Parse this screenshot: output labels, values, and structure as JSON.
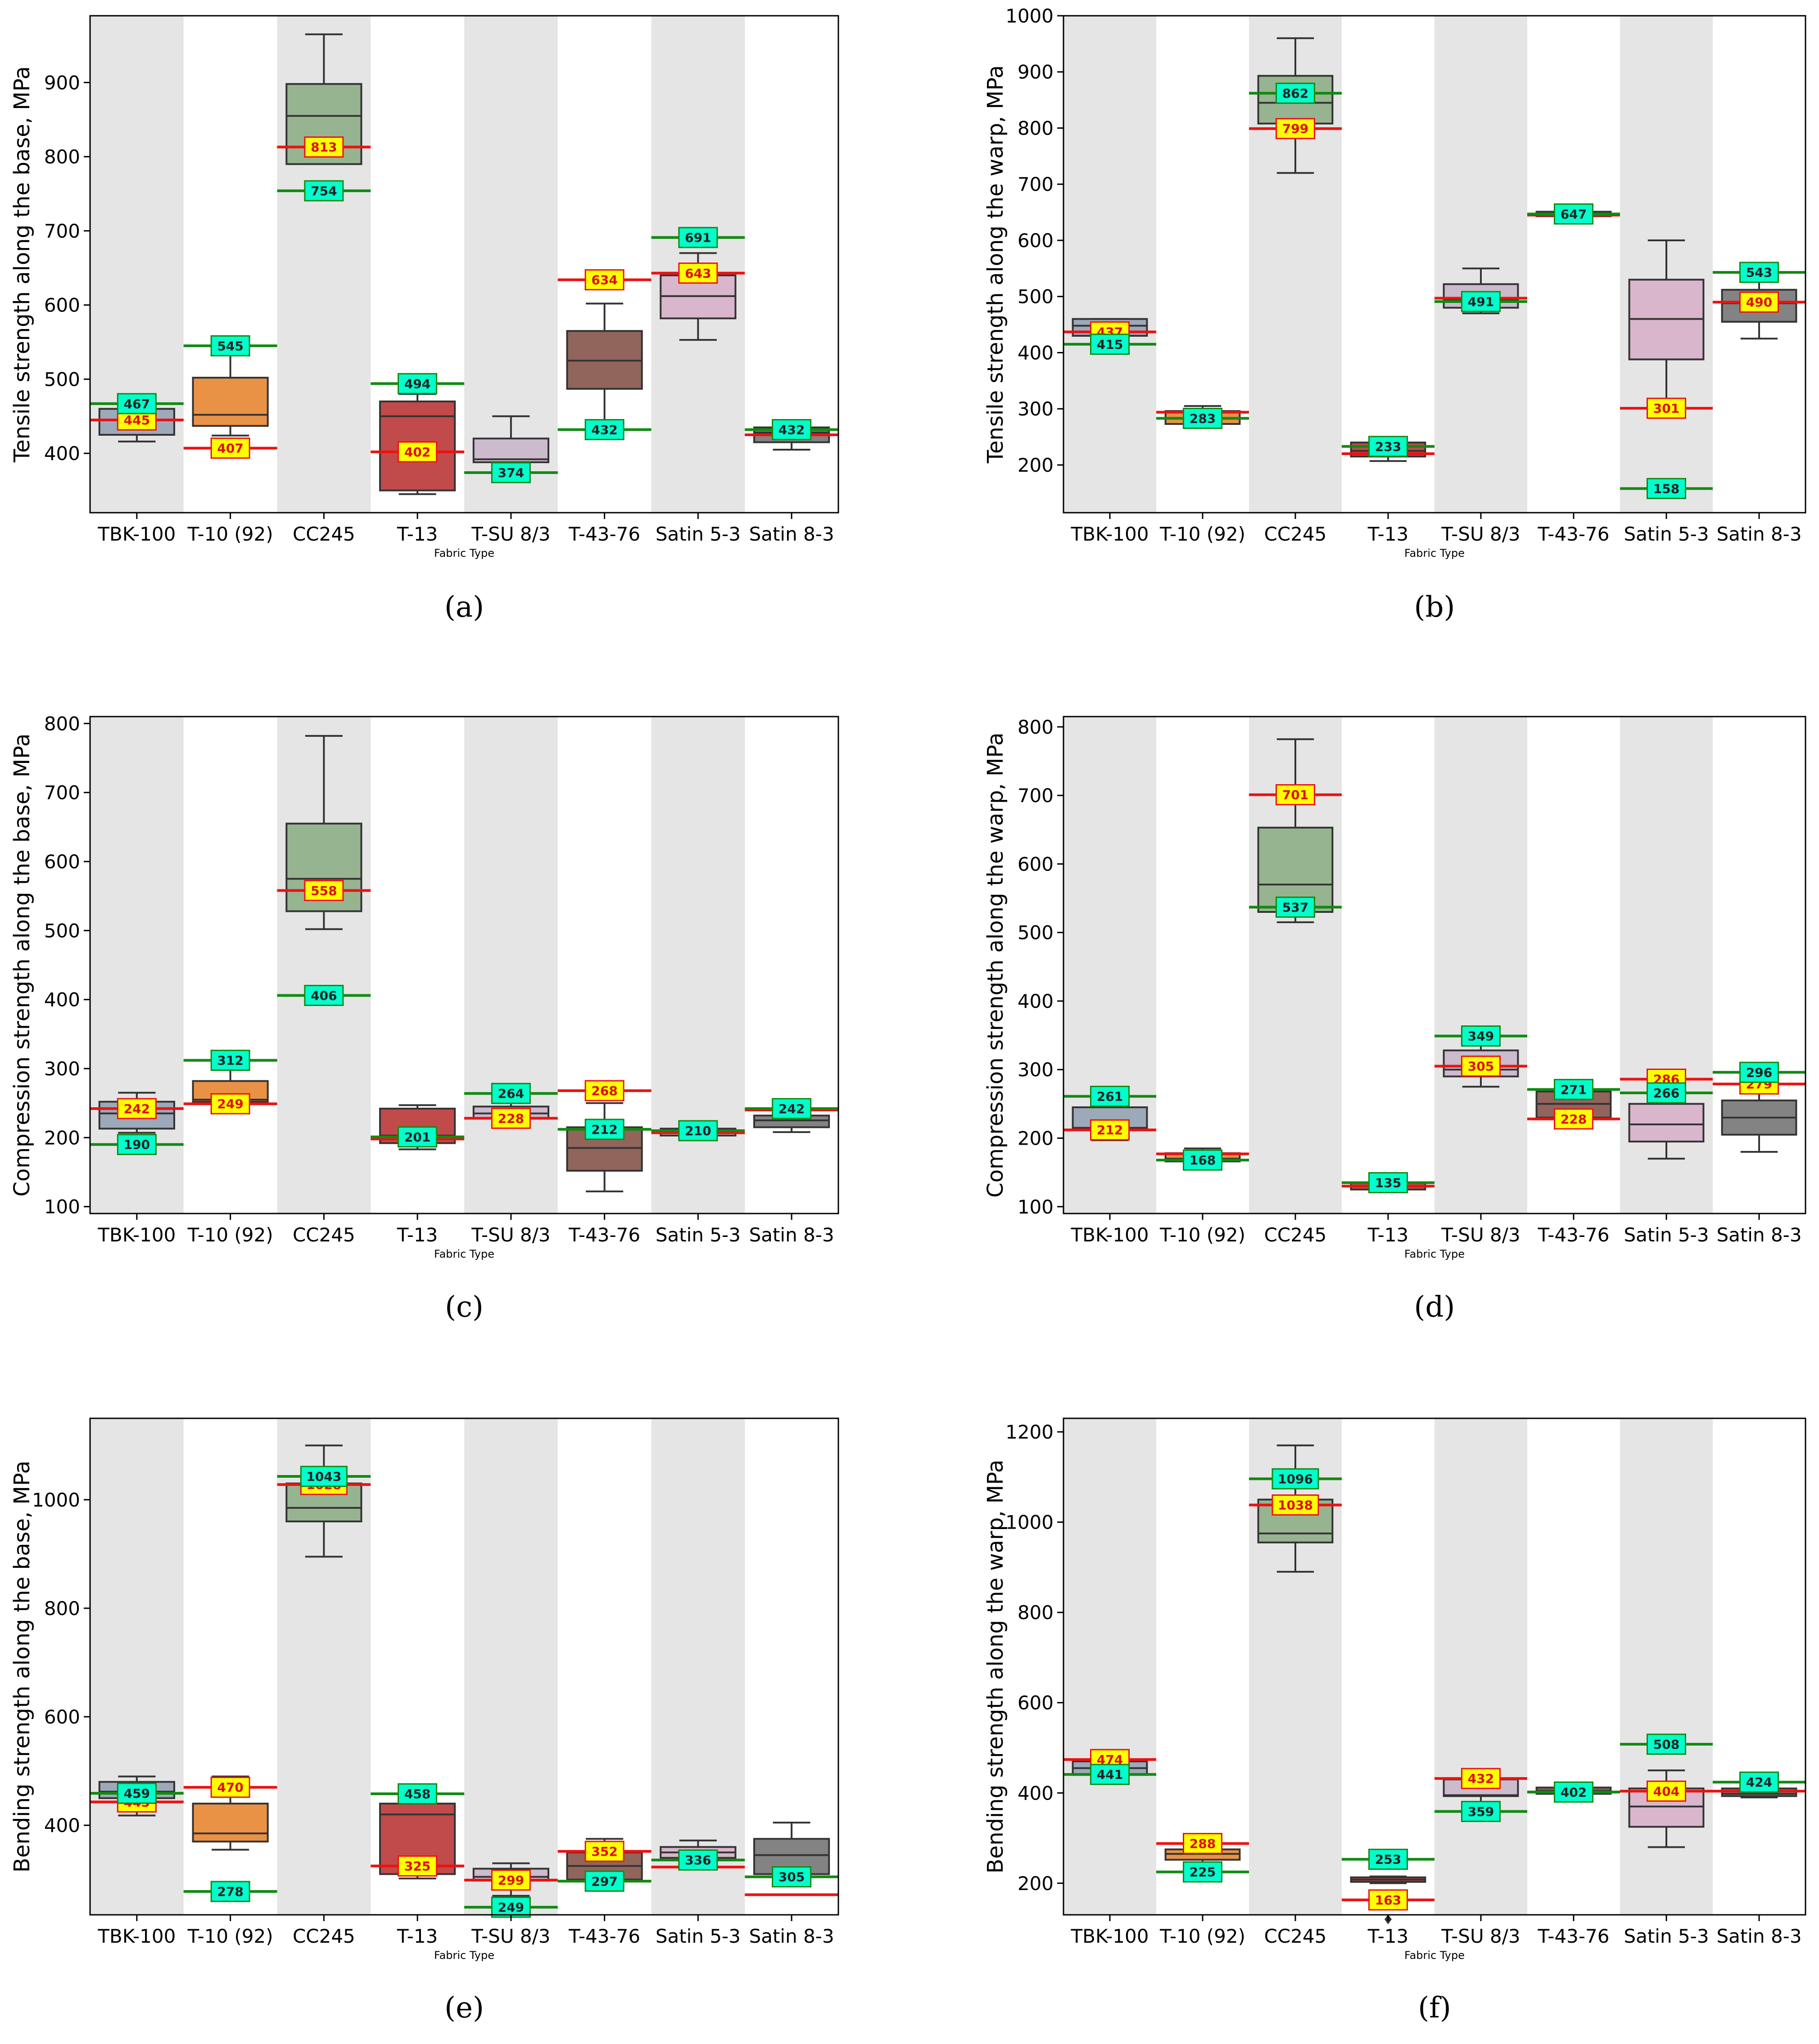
{
  "figure": {
    "categories": [
      "TBK-100",
      "T-10 (92)",
      "CC245",
      "T-13",
      "T-SU 8/3",
      "T-43-76",
      "Satin 5-3",
      "Satin 8-3"
    ],
    "xlabel": "Fabric Type",
    "colors": {
      "TBK-100": "#8f9fb2",
      "T-10 (92)": "#e57f26",
      "CC245": "#8aac83",
      "T-13": "#b62c2c",
      "T-SU 8/3": "#c8b3c9",
      "T-43-76": "#7e4a40",
      "Satin 5-3": "#d7aec8",
      "Satin 8-3": "#6d6d6d",
      "band": "#e5e5e5",
      "red_line": "#ee1111",
      "green_line": "#118a11",
      "red_label_bg": "#ffff00",
      "green_label_bg": "#00ffcc"
    }
  },
  "chart_data": [
    {
      "id": "a",
      "caption": "(a)",
      "type": "box",
      "ylabel": "Tensile strength along the base, MPa",
      "ylim": [
        320,
        990
      ],
      "yticks": [
        400,
        500,
        600,
        700,
        800,
        900
      ],
      "boxes": [
        {
          "q1": 425,
          "med": 445,
          "q3": 460,
          "lo": 416,
          "hi": 460
        },
        {
          "q1": 437,
          "med": 452,
          "q3": 502,
          "lo": 424,
          "hi": 545
        },
        {
          "q1": 790,
          "med": 855,
          "q3": 898,
          "lo": 790,
          "hi": 965
        },
        {
          "q1": 350,
          "med": 450,
          "q3": 470,
          "lo": 345,
          "hi": 480
        },
        {
          "q1": 388,
          "med": 392,
          "q3": 420,
          "lo": 370,
          "hi": 450
        },
        {
          "q1": 487,
          "med": 525,
          "q3": 565,
          "lo": 445,
          "hi": 602
        },
        {
          "q1": 582,
          "med": 612,
          "q3": 640,
          "lo": 553,
          "hi": 670
        },
        {
          "q1": 415,
          "med": 428,
          "q3": 435,
          "lo": 405,
          "hi": 445
        }
      ],
      "red": [
        445,
        407,
        813,
        402,
        374,
        634,
        643,
        425
      ],
      "green": [
        467,
        545,
        754,
        494,
        374,
        432,
        691,
        432
      ],
      "red_labels": [
        "445",
        "407",
        "813",
        "402",
        "",
        "634",
        "643",
        ""
      ],
      "green_labels": [
        "467",
        "545",
        "754",
        "494",
        "374",
        "432",
        "691",
        "432"
      ]
    },
    {
      "id": "b",
      "caption": "(b)",
      "type": "box",
      "ylabel": "Tensile strength along the warp, MPa",
      "ylim": [
        115,
        1000
      ],
      "yticks": [
        200,
        300,
        400,
        500,
        600,
        700,
        800,
        900,
        1000
      ],
      "boxes": [
        {
          "q1": 430,
          "med": 448,
          "q3": 460,
          "lo": 425,
          "hi": 460
        },
        {
          "q1": 273,
          "med": 283,
          "q3": 296,
          "lo": 268,
          "hi": 305
        },
        {
          "q1": 808,
          "med": 845,
          "q3": 893,
          "lo": 720,
          "hi": 960
        },
        {
          "q1": 215,
          "med": 225,
          "q3": 240,
          "lo": 207,
          "hi": 250
        },
        {
          "q1": 480,
          "med": 495,
          "q3": 522,
          "lo": 470,
          "hi": 550
        },
        {
          "q1": 643,
          "med": 647,
          "q3": 651,
          "lo": 640,
          "hi": 655
        },
        {
          "q1": 388,
          "med": 460,
          "q3": 530,
          "lo": 300,
          "hi": 600
        },
        {
          "q1": 455,
          "med": 488,
          "q3": 512,
          "lo": 425,
          "hi": 543
        }
      ],
      "red": [
        437,
        294,
        799,
        220,
        497,
        645,
        301,
        490
      ],
      "green": [
        415,
        283,
        862,
        233,
        491,
        647,
        158,
        543
      ],
      "red_labels": [
        "437",
        "",
        "799",
        "",
        "",
        "",
        "301",
        "490"
      ],
      "green_labels": [
        "415",
        "283",
        "862",
        "233",
        "491",
        "647",
        "158",
        "543"
      ]
    },
    {
      "id": "c",
      "caption": "(c)",
      "type": "box",
      "ylabel": "Compression strength along the base, MPa",
      "ylim": [
        90,
        810
      ],
      "yticks": [
        100,
        200,
        300,
        400,
        500,
        600,
        700,
        800
      ],
      "boxes": [
        {
          "q1": 213,
          "med": 235,
          "q3": 252,
          "lo": 207,
          "hi": 265
        },
        {
          "q1": 252,
          "med": 255,
          "q3": 282,
          "lo": 250,
          "hi": 310
        },
        {
          "q1": 528,
          "med": 575,
          "q3": 655,
          "lo": 502,
          "hi": 782
        },
        {
          "q1": 192,
          "med": 203,
          "q3": 242,
          "lo": 183,
          "hi": 247
        },
        {
          "q1": 228,
          "med": 235,
          "q3": 245,
          "lo": 222,
          "hi": 250
        },
        {
          "q1": 152,
          "med": 185,
          "q3": 215,
          "lo": 122,
          "hi": 250
        },
        {
          "q1": 203,
          "med": 207,
          "q3": 213,
          "lo": 198,
          "hi": 218
        },
        {
          "q1": 215,
          "med": 225,
          "q3": 232,
          "lo": 208,
          "hi": 240
        }
      ],
      "red": [
        242,
        249,
        558,
        198,
        228,
        268,
        207,
        240
      ],
      "green": [
        190,
        312,
        406,
        201,
        264,
        212,
        210,
        242
      ],
      "red_labels": [
        "242",
        "249",
        "558",
        "",
        "228",
        "268",
        "",
        ""
      ],
      "green_labels": [
        "190",
        "312",
        "406",
        "201",
        "264",
        "212",
        "210",
        "242"
      ]
    },
    {
      "id": "d",
      "caption": "(d)",
      "type": "box",
      "ylabel": "Compression strength along the warp, MPa",
      "ylim": [
        90,
        815
      ],
      "yticks": [
        100,
        200,
        300,
        400,
        500,
        600,
        700,
        800
      ],
      "boxes": [
        {
          "q1": 213,
          "med": 215,
          "q3": 245,
          "lo": 197,
          "hi": 248
        },
        {
          "q1": 166,
          "med": 170,
          "q3": 178,
          "lo": 158,
          "hi": 185
        },
        {
          "q1": 530,
          "med": 570,
          "q3": 653,
          "lo": 515,
          "hi": 782
        },
        {
          "q1": 125,
          "med": 130,
          "q3": 135,
          "lo": 122,
          "hi": 138
        },
        {
          "q1": 290,
          "med": 300,
          "q3": 328,
          "lo": 275,
          "hi": 345
        },
        {
          "q1": 230,
          "med": 250,
          "q3": 268,
          "lo": 215,
          "hi": 275
        },
        {
          "q1": 195,
          "med": 220,
          "q3": 250,
          "lo": 170,
          "hi": 280
        },
        {
          "q1": 205,
          "med": 230,
          "q3": 255,
          "lo": 180,
          "hi": 275
        }
      ],
      "red": [
        212,
        177,
        701,
        130,
        305,
        228,
        286,
        279
      ],
      "green": [
        261,
        168,
        537,
        135,
        349,
        271,
        266,
        296
      ],
      "red_labels": [
        "212",
        "",
        "701",
        "",
        "305",
        "228",
        "286",
        "279"
      ],
      "green_labels": [
        "261",
        "168",
        "537",
        "135",
        "349",
        "271",
        "266",
        "296"
      ]
    },
    {
      "id": "e",
      "caption": "(e)",
      "type": "box",
      "ylabel": "Bending strength along the base, MPa",
      "ylim": [
        235,
        1150
      ],
      "yticks": [
        400,
        600,
        800,
        1000
      ],
      "boxes": [
        {
          "q1": 450,
          "med": 462,
          "q3": 480,
          "lo": 418,
          "hi": 490
        },
        {
          "q1": 370,
          "med": 385,
          "q3": 440,
          "lo": 355,
          "hi": 490
        },
        {
          "q1": 960,
          "med": 985,
          "q3": 1030,
          "lo": 895,
          "hi": 1100
        },
        {
          "q1": 310,
          "med": 420,
          "q3": 440,
          "lo": 302,
          "hi": 445
        },
        {
          "q1": 298,
          "med": 305,
          "q3": 320,
          "lo": 270,
          "hi": 330
        },
        {
          "q1": 300,
          "med": 325,
          "q3": 350,
          "lo": 280,
          "hi": 375
        },
        {
          "q1": 340,
          "med": 350,
          "q3": 360,
          "lo": 330,
          "hi": 372
        },
        {
          "q1": 310,
          "med": 345,
          "q3": 375,
          "lo": 300,
          "hi": 405
        }
      ],
      "red": [
        443,
        470,
        1028,
        325,
        299,
        352,
        323,
        272
      ],
      "green": [
        459,
        278,
        1043,
        458,
        249,
        297,
        336,
        305
      ],
      "red_labels": [
        "443",
        "470",
        "1028",
        "325",
        "299",
        "352",
        "",
        ""
      ],
      "green_labels": [
        "459",
        "278",
        "1043",
        "458",
        "249",
        "297",
        "336",
        "305"
      ]
    },
    {
      "id": "f",
      "caption": "(f)",
      "type": "box",
      "ylabel": "Bending strength along the warp, MPa",
      "ylim": [
        130,
        1230
      ],
      "yticks": [
        200,
        400,
        600,
        800,
        1000,
        1200
      ],
      "boxes": [
        {
          "q1": 440,
          "med": 455,
          "q3": 470,
          "lo": 422,
          "hi": 480
        },
        {
          "q1": 252,
          "med": 265,
          "q3": 275,
          "lo": 240,
          "hi": 285
        },
        {
          "q1": 955,
          "med": 975,
          "q3": 1050,
          "lo": 890,
          "hi": 1170
        },
        {
          "q1": 203,
          "med": 208,
          "q3": 213,
          "lo": 200,
          "hi": 215
        },
        {
          "q1": 393,
          "med": 395,
          "q3": 430,
          "lo": 380,
          "hi": 440
        },
        {
          "q1": 398,
          "med": 405,
          "q3": 412,
          "lo": 395,
          "hi": 415
        },
        {
          "q1": 325,
          "med": 370,
          "q3": 410,
          "lo": 280,
          "hi": 450
        },
        {
          "q1": 393,
          "med": 398,
          "q3": 410,
          "lo": 390,
          "hi": 415
        }
      ],
      "red": [
        474,
        288,
        1038,
        163,
        432,
        402,
        404,
        404
      ],
      "green": [
        441,
        225,
        1096,
        253,
        359,
        402,
        508,
        424
      ],
      "red_labels": [
        "474",
        "288",
        "1038",
        "163",
        "432",
        "",
        "404",
        ""
      ],
      "green_labels": [
        "441",
        "225",
        "1096",
        "253",
        "359",
        "402",
        "508",
        "424"
      ],
      "outliers": [
        {
          "index": 3,
          "value": 120
        }
      ]
    }
  ]
}
